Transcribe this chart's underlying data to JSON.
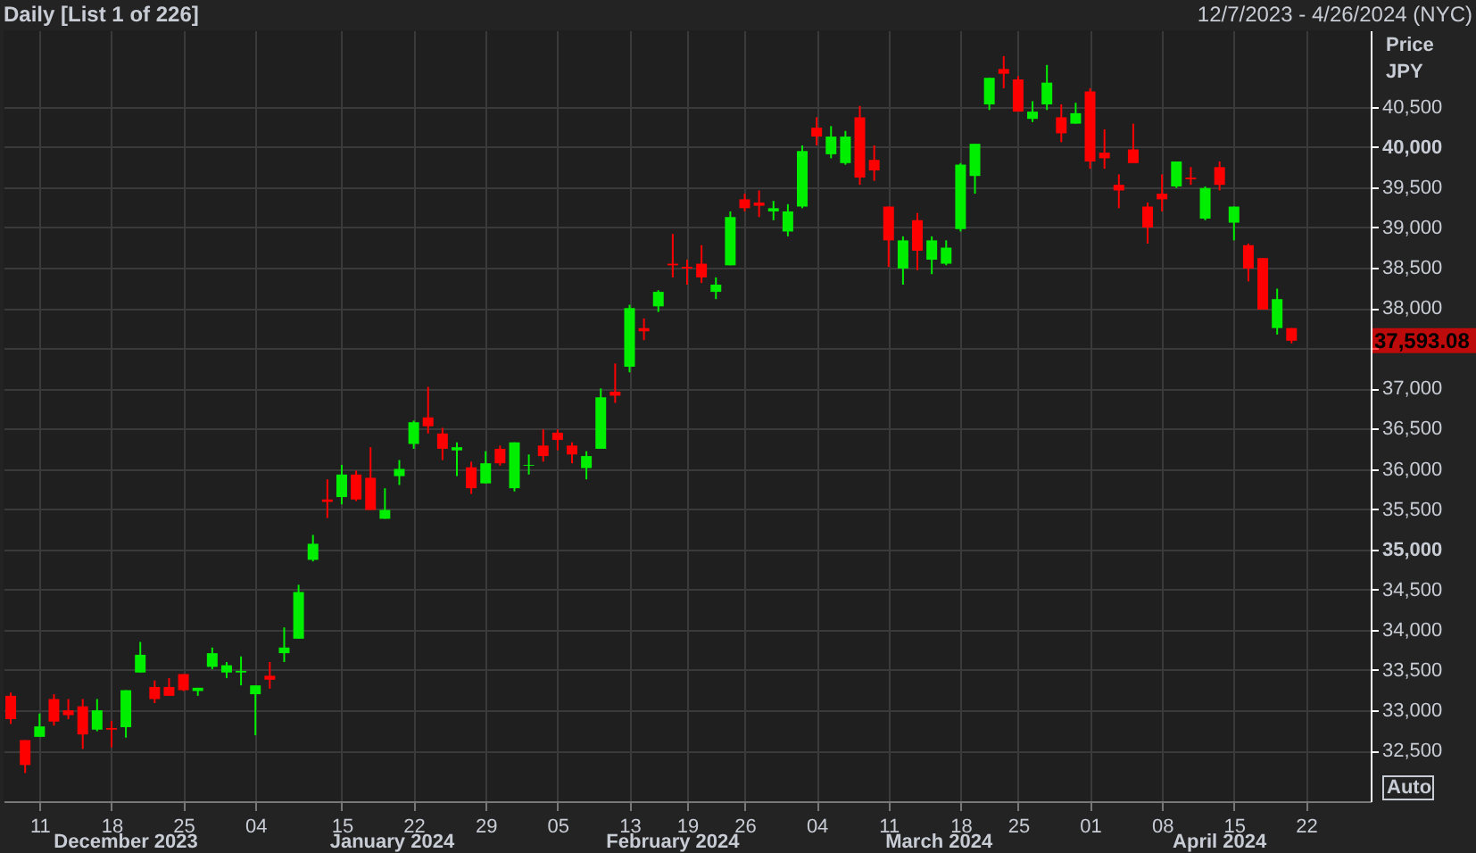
{
  "chart_data": {
    "type": "candlestick",
    "title": "Daily [List 1 of 226]",
    "subtitle": "12/7/2023 - 4/26/2024 (NYC)",
    "ylabel": "Price JPY",
    "categories": [
      null,
      null,
      "11",
      null,
      null,
      null,
      null,
      "18",
      null,
      null,
      null,
      null,
      "25",
      null,
      null,
      null,
      null,
      "04",
      null,
      null,
      null,
      null,
      null,
      "15",
      null,
      null,
      null,
      null,
      "22",
      null,
      null,
      null,
      null,
      "29",
      null,
      null,
      null,
      null,
      "05",
      null,
      null,
      null,
      null,
      "13",
      null,
      null,
      null,
      "19",
      null,
      null,
      null,
      "26",
      null,
      null,
      null,
      null,
      "04",
      null,
      null,
      null,
      null,
      "11",
      null,
      null,
      null,
      null,
      "18",
      null,
      null,
      null,
      "25",
      null,
      null,
      null,
      null,
      "01",
      null,
      null,
      null,
      null,
      "08",
      null,
      null,
      null,
      null,
      "15",
      null,
      null,
      null,
      null,
      "22",
      null,
      null,
      null,
      null
    ],
    "ohlc": [
      [
        33180,
        33220,
        32830,
        32890
      ],
      [
        32630,
        32630,
        32220,
        32320
      ],
      [
        32670,
        32960,
        32670,
        32800
      ],
      [
        33140,
        33200,
        32810,
        32860
      ],
      [
        33000,
        33140,
        32890,
        32940
      ],
      [
        33050,
        33140,
        32520,
        32700
      ],
      [
        32760,
        33140,
        32740,
        33000
      ],
      [
        32780,
        32870,
        32540,
        32760
      ],
      [
        32790,
        33250,
        32660,
        33250
      ],
      [
        33470,
        33850,
        33470,
        33690
      ],
      [
        33290,
        33370,
        33090,
        33140
      ],
      [
        33290,
        33400,
        33180,
        33180
      ],
      [
        33450,
        33450,
        33240,
        33250
      ],
      [
        33240,
        33280,
        33180,
        33280
      ],
      [
        33540,
        33780,
        33510,
        33710
      ],
      [
        33470,
        33600,
        33400,
        33560
      ],
      [
        33470,
        33670,
        33310,
        33490
      ],
      [
        33200,
        33310,
        32690,
        33310
      ],
      [
        33430,
        33600,
        33270,
        33380
      ],
      [
        33710,
        34030,
        33600,
        33780
      ],
      [
        33890,
        34560,
        33890,
        34470
      ],
      [
        34870,
        35180,
        34850,
        35070
      ],
      [
        35620,
        35870,
        35390,
        35590
      ],
      [
        35650,
        36050,
        35560,
        35930
      ],
      [
        35930,
        35980,
        35600,
        35620
      ],
      [
        35890,
        36270,
        35490,
        35490
      ],
      [
        35380,
        35760,
        35380,
        35490
      ],
      [
        35910,
        36110,
        35800,
        36000
      ],
      [
        36310,
        36600,
        36250,
        36580
      ],
      [
        36640,
        37020,
        36440,
        36530
      ],
      [
        36440,
        36510,
        36110,
        36250
      ],
      [
        36230,
        36330,
        35910,
        36270
      ],
      [
        36020,
        36090,
        35690,
        35760
      ],
      [
        35820,
        36220,
        35820,
        36070
      ],
      [
        36250,
        36290,
        36040,
        36070
      ],
      [
        35760,
        36330,
        35720,
        36330
      ],
      [
        36040,
        36180,
        35930,
        36050
      ],
      [
        36290,
        36490,
        36090,
        36160
      ],
      [
        36450,
        36490,
        36230,
        36360
      ],
      [
        36290,
        36330,
        36070,
        36180
      ],
      [
        36010,
        36220,
        35870,
        36160
      ],
      [
        36250,
        37000,
        36250,
        36890
      ],
      [
        36960,
        37310,
        36820,
        36910
      ],
      [
        37270,
        38040,
        37200,
        38000
      ],
      [
        37750,
        37870,
        37600,
        37710
      ],
      [
        38020,
        38220,
        37950,
        38200
      ],
      [
        38550,
        38920,
        38380,
        38530
      ],
      [
        38510,
        38600,
        38290,
        38490
      ],
      [
        38550,
        38780,
        38310,
        38380
      ],
      [
        38200,
        38380,
        38110,
        38290
      ],
      [
        38530,
        39200,
        38530,
        39130
      ],
      [
        39350,
        39420,
        39200,
        39240
      ],
      [
        39310,
        39460,
        39130,
        39270
      ],
      [
        39200,
        39330,
        39090,
        39240
      ],
      [
        38950,
        39290,
        38890,
        39200
      ],
      [
        39260,
        40020,
        39240,
        39950
      ],
      [
        40240,
        40370,
        40020,
        40130
      ],
      [
        39910,
        40260,
        39860,
        40130
      ],
      [
        39800,
        40200,
        39780,
        40130
      ],
      [
        40370,
        40510,
        39530,
        39620
      ],
      [
        39840,
        40020,
        39580,
        39710
      ],
      [
        39260,
        39260,
        38510,
        38840
      ],
      [
        38490,
        38890,
        38290,
        38840
      ],
      [
        39090,
        39180,
        38470,
        38710
      ],
      [
        38600,
        38890,
        38420,
        38840
      ],
      [
        38550,
        38840,
        38530,
        38750
      ],
      [
        38980,
        39800,
        38950,
        39780
      ],
      [
        39640,
        40040,
        39420,
        40040
      ],
      [
        40530,
        40860,
        40460,
        40860
      ],
      [
        40970,
        41130,
        40730,
        40910
      ],
      [
        40840,
        40880,
        40440,
        40440
      ],
      [
        40350,
        40570,
        40310,
        40440
      ],
      [
        40530,
        41020,
        40460,
        40800
      ],
      [
        40370,
        40530,
        40060,
        40170
      ],
      [
        40290,
        40550,
        40290,
        40420
      ],
      [
        40690,
        40730,
        39730,
        39820
      ],
      [
        39930,
        40220,
        39730,
        39860
      ],
      [
        39530,
        39660,
        39240,
        39460
      ],
      [
        39970,
        40290,
        39800,
        39800
      ],
      [
        39260,
        39310,
        38800,
        39000
      ],
      [
        39420,
        39660,
        39200,
        39350
      ],
      [
        39510,
        39820,
        39490,
        39820
      ],
      [
        39620,
        39750,
        39530,
        39600
      ],
      [
        39110,
        39510,
        39090,
        39490
      ],
      [
        39750,
        39820,
        39460,
        39530
      ],
      [
        39060,
        39260,
        38840,
        39260
      ],
      [
        38780,
        38800,
        38330,
        38490
      ],
      [
        38620,
        38620,
        37980,
        37980
      ],
      [
        37750,
        38240,
        37670,
        38110
      ],
      [
        37750,
        37750,
        37560,
        37593.08
      ],
      null,
      null,
      null,
      null,
      null
    ],
    "colors": [
      "#ff0000",
      "#ff0000",
      "#00ee00",
      "#ff0000",
      "#ff0000",
      "#ff0000",
      "#00ee00",
      "#ff0000",
      "#00ee00",
      "#00ee00",
      "#ff0000",
      "#ff0000",
      "#ff0000",
      "#00ee00",
      "#00ee00",
      "#00ee00",
      "#00ee00",
      "#00ee00",
      "#ff0000",
      "#00ee00",
      "#00ee00",
      "#00ee00",
      "#ff0000",
      "#00ee00",
      "#ff0000",
      "#ff0000",
      "#00ee00",
      "#00ee00",
      "#00ee00",
      "#ff0000",
      "#ff0000",
      "#00ee00",
      "#ff0000",
      "#00ee00",
      "#ff0000",
      "#00ee00",
      "#00ee00",
      "#ff0000",
      "#ff0000",
      "#ff0000",
      "#00ee00",
      "#00ee00",
      "#ff0000",
      "#00ee00",
      "#ff0000",
      "#00ee00",
      "#ff0000",
      "#ff0000",
      "#ff0000",
      "#00ee00",
      "#00ee00",
      "#ff0000",
      "#ff0000",
      "#00ee00",
      "#00ee00",
      "#00ee00",
      "#ff0000",
      "#00ee00",
      "#00ee00",
      "#ff0000",
      "#ff0000",
      "#ff0000",
      "#00ee00",
      "#ff0000",
      "#00ee00",
      "#00ee00",
      "#00ee00",
      "#00ee00",
      "#00ee00",
      "#ff0000",
      "#ff0000",
      "#00ee00",
      "#00ee00",
      "#ff0000",
      "#00ee00",
      "#ff0000",
      "#ff0000",
      "#ff0000",
      "#ff0000",
      "#ff0000",
      "#ff0000",
      "#00ee00",
      "#ff0000",
      "#00ee00",
      "#ff0000",
      "#00ee00",
      "#ff0000",
      "#ff0000",
      "#00ee00",
      "#ff0000",
      null,
      null,
      null,
      null,
      null
    ],
    "ylim": [
      31870,
      41450
    ],
    "yticks": [
      {
        "value": 32500,
        "label": "32,500"
      },
      {
        "value": 33000,
        "label": "33,000"
      },
      {
        "value": 33500,
        "label": "33,500"
      },
      {
        "value": 34000,
        "label": "34,000"
      },
      {
        "value": 34500,
        "label": "34,500"
      },
      {
        "value": 35000,
        "label": "35,000"
      },
      {
        "value": 35500,
        "label": "35,500"
      },
      {
        "value": 36000,
        "label": "36,000"
      },
      {
        "value": 36500,
        "label": "36,500"
      },
      {
        "value": 37000,
        "label": "37,000"
      },
      {
        "value": 37500,
        "label": null
      },
      {
        "value": 38000,
        "label": "38,000"
      },
      {
        "value": 38500,
        "label": "38,500"
      },
      {
        "value": 39000,
        "label": "39,000"
      },
      {
        "value": 39500,
        "label": "39,500"
      },
      {
        "value": 40000,
        "label": "40,000"
      },
      {
        "value": 40500,
        "label": "40,500"
      }
    ],
    "grid": true,
    "annotations": [
      "December 2023",
      "January 2024",
      "February 2024",
      "March 2024",
      "April 2024",
      "37,593.08",
      "Auto"
    ]
  }
}
